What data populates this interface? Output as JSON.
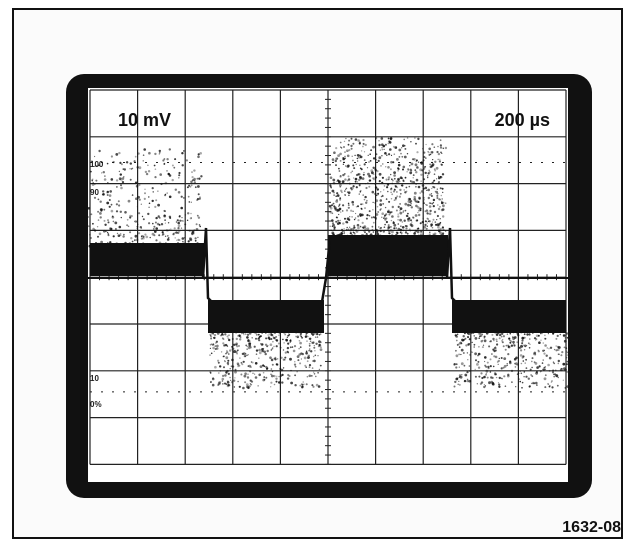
{
  "scope": {
    "volts_per_div": "10 mV",
    "time_per_div": "200 µs",
    "graticule_marks": [
      "100",
      "90",
      "10",
      "0%"
    ]
  },
  "figure": {
    "id": "1632-08"
  },
  "colors": {
    "trace": "#111111",
    "graticule": "#222222",
    "bezel": "#111111"
  }
}
